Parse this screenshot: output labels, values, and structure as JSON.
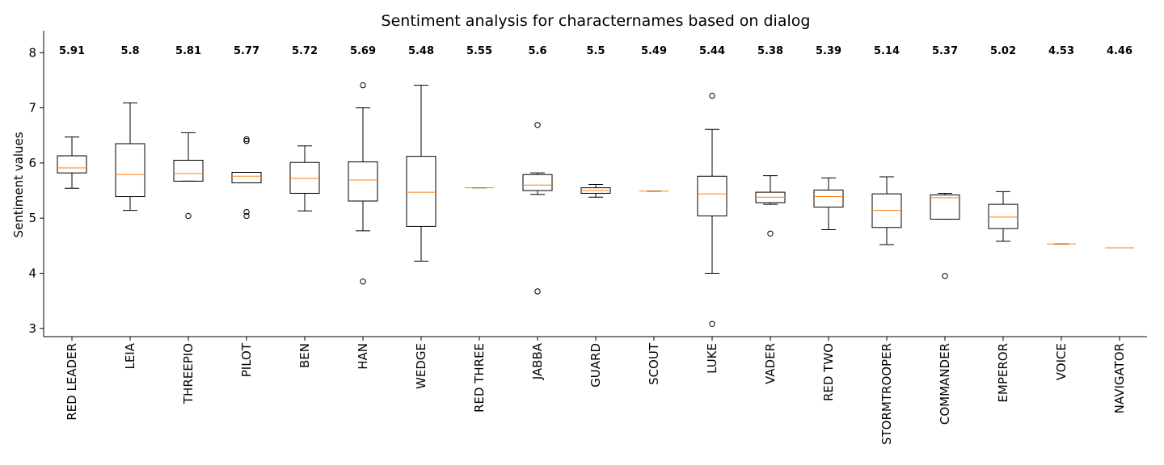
{
  "chart_data": {
    "type": "box",
    "title": "Sentiment analysis for characternames based on dialog",
    "xlabel": "",
    "ylabel": "Sentiment values",
    "ylim": [
      2.85,
      8.4
    ],
    "yticks": [
      3,
      4,
      5,
      6,
      7,
      8
    ],
    "grid": false,
    "colors": {
      "box": "#000000",
      "median": "#ff7f0e"
    },
    "categories": [
      "RED LEADER",
      "LEIA",
      "THREEPIO",
      "PILOT",
      "BEN",
      "HAN",
      "WEDGE",
      "RED THREE",
      "JABBA",
      "GUARD",
      "SCOUT",
      "LUKE",
      "VADER",
      "RED TWO",
      "STORMTROOPER",
      "COMMANDER",
      "EMPEROR",
      "VOICE",
      "NAVIGATOR"
    ],
    "mean_labels": [
      "5.91",
      "5.8",
      "5.81",
      "5.77",
      "5.72",
      "5.69",
      "5.48",
      "5.55",
      "5.6",
      "5.5",
      "5.49",
      "5.44",
      "5.38",
      "5.39",
      "5.14",
      "5.37",
      "5.02",
      "4.53",
      "4.46"
    ],
    "boxes": [
      {
        "whislo": 5.54,
        "q1": 5.82,
        "med": 5.91,
        "q3": 6.13,
        "whishi": 6.47,
        "fliers": []
      },
      {
        "whislo": 5.14,
        "q1": 5.39,
        "med": 5.79,
        "q3": 6.35,
        "whishi": 7.09,
        "fliers": []
      },
      {
        "whislo": 5.67,
        "q1": 5.67,
        "med": 5.81,
        "q3": 6.05,
        "whishi": 6.55,
        "fliers": [
          5.04
        ]
      },
      {
        "whislo": 5.64,
        "q1": 5.64,
        "med": 5.76,
        "q3": 5.83,
        "whishi": 5.83,
        "fliers": [
          5.04,
          5.11,
          6.4,
          6.43
        ]
      },
      {
        "whislo": 5.13,
        "q1": 5.45,
        "med": 5.72,
        "q3": 6.01,
        "whishi": 6.31,
        "fliers": []
      },
      {
        "whislo": 4.77,
        "q1": 5.31,
        "med": 5.69,
        "q3": 6.02,
        "whishi": 7.0,
        "fliers": [
          3.85,
          7.41
        ]
      },
      {
        "whislo": 4.22,
        "q1": 4.85,
        "med": 5.47,
        "q3": 6.12,
        "whishi": 7.41,
        "fliers": []
      },
      {
        "whislo": 5.55,
        "q1": 5.55,
        "med": 5.55,
        "q3": 5.55,
        "whishi": 5.55,
        "fliers": []
      },
      {
        "whislo": 5.43,
        "q1": 5.5,
        "med": 5.6,
        "q3": 5.79,
        "whishi": 5.82,
        "fliers": [
          3.67,
          6.69
        ]
      },
      {
        "whislo": 5.38,
        "q1": 5.45,
        "med": 5.5,
        "q3": 5.55,
        "whishi": 5.61,
        "fliers": []
      },
      {
        "whislo": 5.49,
        "q1": 5.49,
        "med": 5.49,
        "q3": 5.49,
        "whishi": 5.49,
        "fliers": []
      },
      {
        "whislo": 4.0,
        "q1": 5.04,
        "med": 5.44,
        "q3": 5.76,
        "whishi": 6.61,
        "fliers": [
          3.08,
          7.22
        ]
      },
      {
        "whislo": 5.25,
        "q1": 5.28,
        "med": 5.38,
        "q3": 5.47,
        "whishi": 5.77,
        "fliers": [
          4.72
        ]
      },
      {
        "whislo": 4.79,
        "q1": 5.2,
        "med": 5.39,
        "q3": 5.51,
        "whishi": 5.73,
        "fliers": []
      },
      {
        "whislo": 4.52,
        "q1": 4.83,
        "med": 5.14,
        "q3": 5.44,
        "whishi": 5.75,
        "fliers": []
      },
      {
        "whislo": 4.98,
        "q1": 4.98,
        "med": 5.37,
        "q3": 5.42,
        "whishi": 5.45,
        "fliers": [
          3.95
        ]
      },
      {
        "whislo": 4.58,
        "q1": 4.81,
        "med": 5.02,
        "q3": 5.25,
        "whishi": 5.48,
        "fliers": []
      },
      {
        "whislo": 4.53,
        "q1": 4.53,
        "med": 4.53,
        "q3": 4.53,
        "whishi": 4.53,
        "fliers": []
      },
      {
        "whislo": 4.46,
        "q1": 4.46,
        "med": 4.46,
        "q3": 4.46,
        "whishi": 4.46,
        "fliers": []
      }
    ]
  }
}
